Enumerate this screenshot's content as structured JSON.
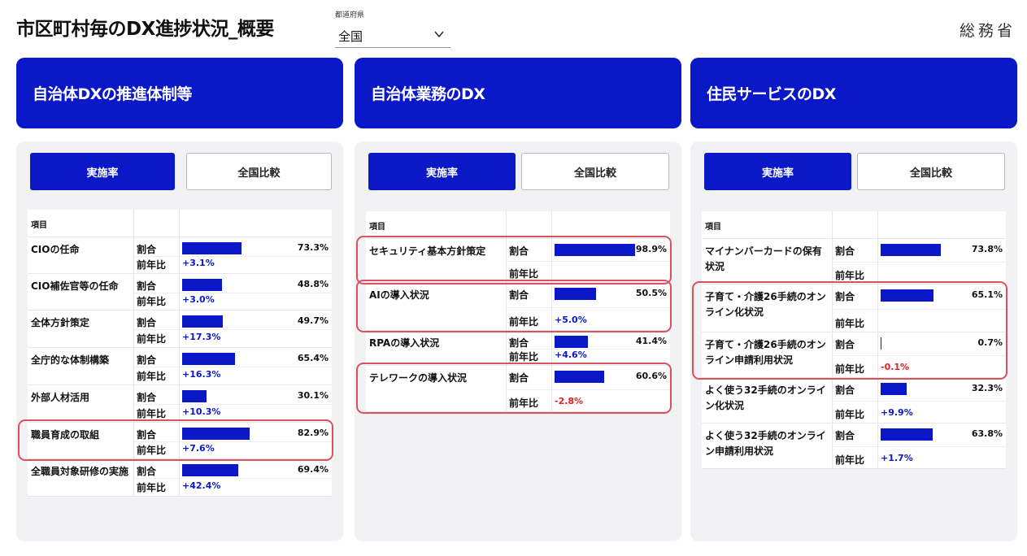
{
  "header": {
    "title": "市区町村毎のDX進捗状況_概要",
    "prefecture_label": "都道府県",
    "prefecture_value": "全国",
    "ministry": "総務省"
  },
  "columns": [
    {
      "title": "自治体DXの推進体制等",
      "tab_active": "実施率",
      "tab_inactive": "全国比較",
      "item_header": "項目",
      "rows": [
        {
          "name": "CIOの任命",
          "label1": "割合",
          "label2": "前年比",
          "pct": "73.3%",
          "pct_value": 73.3,
          "yoy": "+3.1%",
          "highlight": false
        },
        {
          "name": "CIO補佐官等の任命",
          "label1": "割合",
          "label2": "前年比",
          "pct": "48.8%",
          "pct_value": 48.8,
          "yoy": "+3.0%",
          "highlight": false
        },
        {
          "name": "全体方針策定",
          "label1": "割合",
          "label2": "前年比",
          "pct": "49.7%",
          "pct_value": 49.7,
          "yoy": "+17.3%",
          "highlight": false
        },
        {
          "name": "全庁的な体制構築",
          "label1": "割合",
          "label2": "前年比",
          "pct": "65.4%",
          "pct_value": 65.4,
          "yoy": "+16.3%",
          "highlight": false
        },
        {
          "name": "外部人材活用",
          "label1": "割合",
          "label2": "前年比",
          "pct": "30.1%",
          "pct_value": 30.1,
          "yoy": "+10.3%",
          "highlight": false
        },
        {
          "name": "職員育成の取組",
          "label1": "割合",
          "label2": "前年比",
          "pct": "82.9%",
          "pct_value": 82.9,
          "yoy": "+7.6%",
          "highlight": true
        },
        {
          "name": "全職員対象研修の実施",
          "label1": "割合",
          "label2": "前年比",
          "pct": "69.4%",
          "pct_value": 69.4,
          "yoy": "+42.4%",
          "highlight": false
        }
      ]
    },
    {
      "title": "自治体業務のDX",
      "tab_active": "実施率",
      "tab_inactive": "全国比較",
      "item_header": "項目",
      "rows": [
        {
          "name": "セキュリティ基本方針策定",
          "label1": "割合",
          "label2": "前年比",
          "pct": "98.9%",
          "pct_value": 98.9,
          "yoy": "",
          "highlight": true
        },
        {
          "name": "AIの導入状況",
          "label1": "割合",
          "label2": "前年比",
          "pct": "50.5%",
          "pct_value": 50.5,
          "yoy": "+5.0%",
          "highlight": true
        },
        {
          "name": "RPAの導入状況",
          "label1": "割合",
          "label2": "前年比",
          "pct": "41.4%",
          "pct_value": 41.4,
          "yoy": "+4.6%",
          "highlight": false
        },
        {
          "name": "テレワークの導入状況",
          "label1": "割合",
          "label2": "前年比",
          "pct": "60.6%",
          "pct_value": 60.6,
          "yoy": "-2.8%",
          "highlight": true
        }
      ]
    },
    {
      "title": "住民サービスのDX",
      "tab_active": "実施率",
      "tab_inactive": "全国比較",
      "item_header": "項目",
      "rows": [
        {
          "name": "マイナンバーカードの保有状況",
          "label1": "割合",
          "label2": "前年比",
          "pct": "73.8%",
          "pct_value": 73.8,
          "yoy": "",
          "highlight": false
        },
        {
          "name": "子育て・介護26手続のオンライン化状況",
          "label1": "割合",
          "label2": "前年比",
          "pct": "65.1%",
          "pct_value": 65.1,
          "yoy": "",
          "highlight": true
        },
        {
          "name": "子育て・介護26手続のオンライン申請利用状況",
          "label1": "割合",
          "label2": "前年比",
          "pct": "0.7%",
          "pct_value": 0.7,
          "yoy": "-0.1%",
          "highlight": true
        },
        {
          "name": "よく使う32手続のオンライン化状況",
          "label1": "割合",
          "label2": "前年比",
          "pct": "32.3%",
          "pct_value": 32.3,
          "yoy": "+9.9%",
          "highlight": false
        },
        {
          "name": "よく使う32手続のオンライン申請利用状況",
          "label1": "割合",
          "label2": "前年比",
          "pct": "63.8%",
          "pct_value": 63.8,
          "yoy": "+1.7%",
          "highlight": false
        }
      ]
    }
  ],
  "colors": {
    "accent": "#0a18c7",
    "negative": "#e02020",
    "highlight": "#d9525e"
  }
}
